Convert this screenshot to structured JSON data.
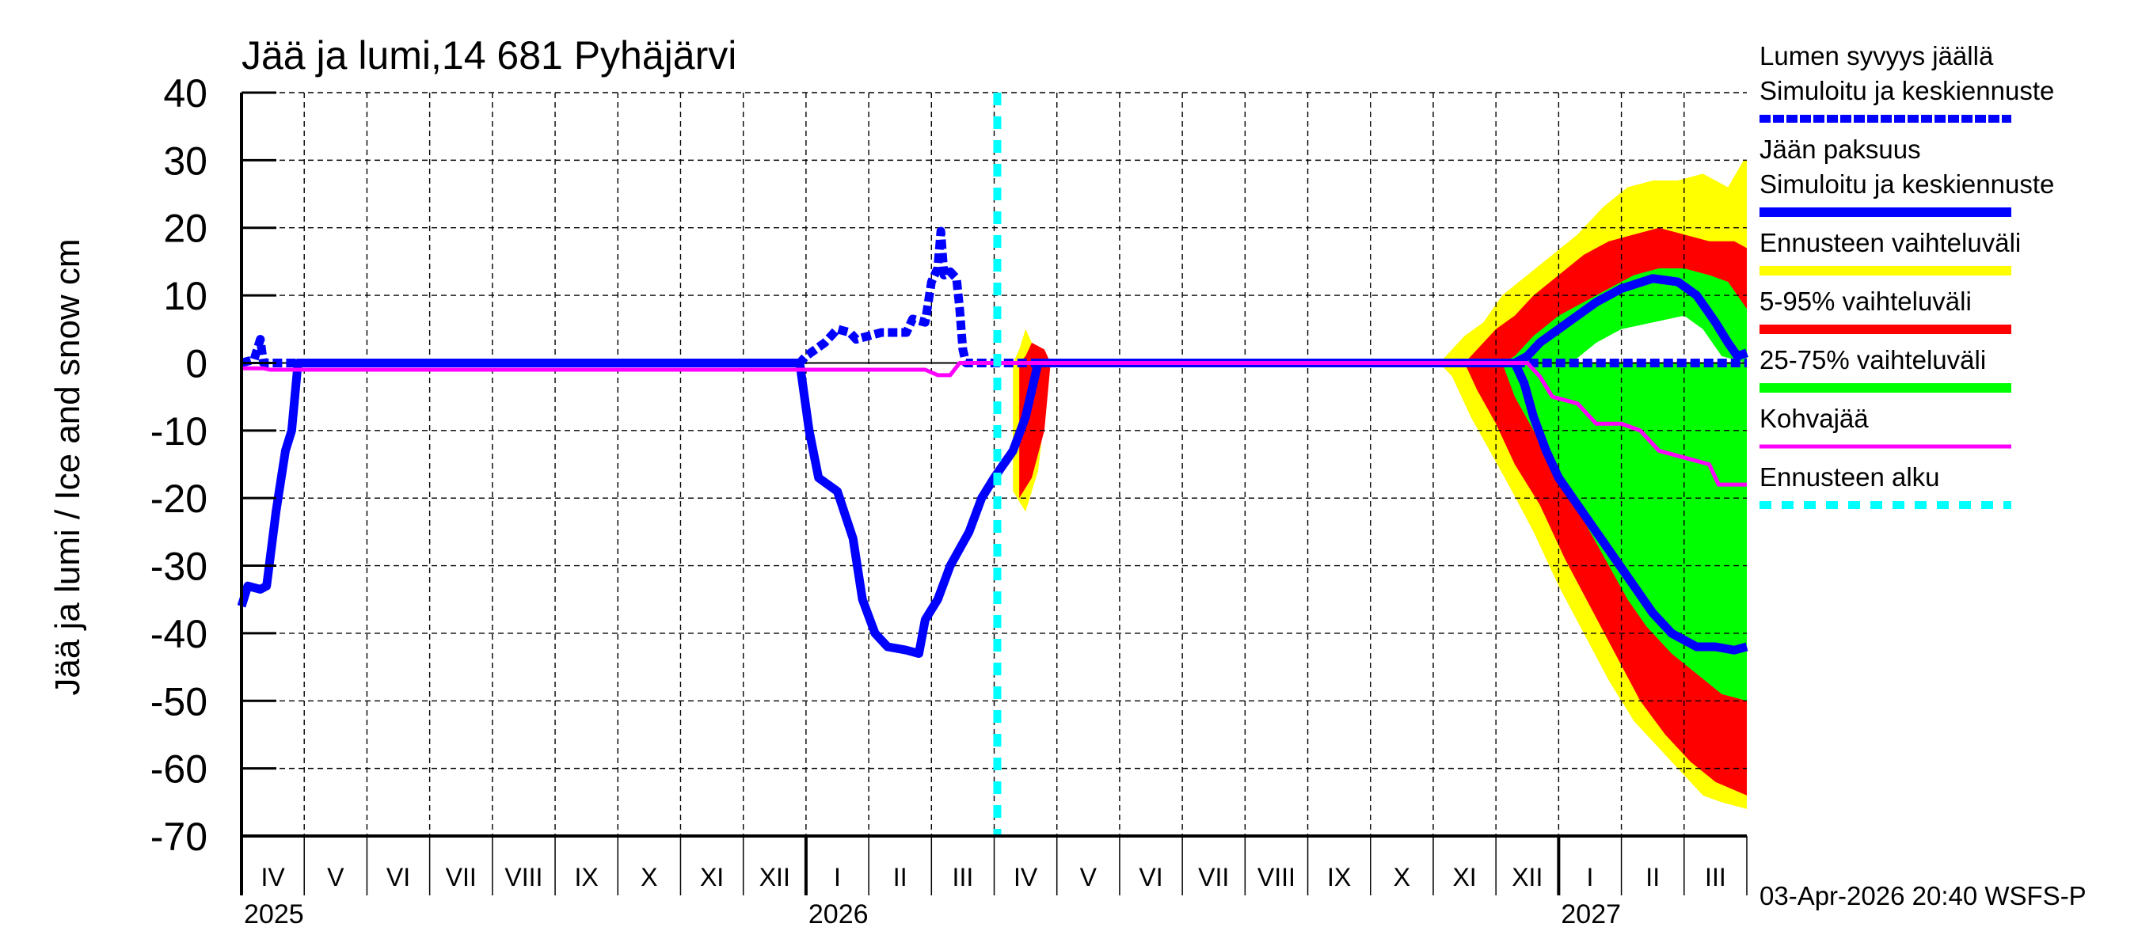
{
  "chart_data": {
    "type": "area",
    "title": "Jää ja lumi,14 681 Pyhäjärvi",
    "xlabel": "",
    "ylabel": "Jää ja lumi / Ice and snow    cm",
    "ylim": [
      -70,
      40
    ],
    "yticks": [
      40,
      30,
      20,
      10,
      0,
      -10,
      -20,
      -30,
      -40,
      -50,
      -60,
      -70
    ],
    "grid": true,
    "legend_position": "right",
    "x_axis": {
      "start": "2025-04",
      "months_shown": 24,
      "month_labels": [
        "IV",
        "V",
        "VI",
        "VII",
        "VIII",
        "IX",
        "X",
        "XI",
        "XII",
        "I",
        "II",
        "III",
        "IV",
        "V",
        "VI",
        "VII",
        "VIII",
        "IX",
        "X",
        "XI",
        "XII",
        "I",
        "II",
        "III"
      ],
      "year_labels": [
        {
          "label": "2025",
          "month_index": 0
        },
        {
          "label": "2026",
          "month_index": 9
        },
        {
          "label": "2027",
          "month_index": 21
        }
      ]
    },
    "forecast_start_month_index": 12.05,
    "timestamp": "03-Apr-2026 20:40 WSFS-P",
    "series": [
      {
        "name": "Lumen syvyys jäällä – Simuloitu ja keskiennuste",
        "kind": "line-dashed",
        "color": "#0000ff",
        "points": [
          [
            0.0,
            0
          ],
          [
            0.2,
            0.5
          ],
          [
            0.3,
            3.5
          ],
          [
            0.35,
            0
          ],
          [
            0.4,
            0
          ],
          [
            8.9,
            0
          ],
          [
            9.0,
            1
          ],
          [
            9.3,
            3
          ],
          [
            9.5,
            5
          ],
          [
            9.7,
            4.5
          ],
          [
            9.8,
            3.5
          ],
          [
            10.0,
            4
          ],
          [
            10.2,
            4.5
          ],
          [
            10.6,
            4.5
          ],
          [
            10.7,
            6.5
          ],
          [
            10.9,
            6
          ],
          [
            11.0,
            12
          ],
          [
            11.1,
            14
          ],
          [
            11.15,
            19.5
          ],
          [
            11.2,
            13
          ],
          [
            11.3,
            13.5
          ],
          [
            11.4,
            12.5
          ],
          [
            11.45,
            8
          ],
          [
            11.5,
            2
          ],
          [
            11.55,
            0
          ],
          [
            24,
            0
          ]
        ]
      },
      {
        "name": "Jään paksuus – Simuloitu ja keskiennuste",
        "kind": "line",
        "color": "#0000ff",
        "points": [
          [
            0.0,
            -36
          ],
          [
            0.1,
            -33
          ],
          [
            0.3,
            -33.5
          ],
          [
            0.4,
            -33
          ],
          [
            0.55,
            -22
          ],
          [
            0.7,
            -13
          ],
          [
            0.8,
            -10
          ],
          [
            0.9,
            0
          ],
          [
            1.0,
            0
          ],
          [
            8.9,
            0
          ],
          [
            9.05,
            -10
          ],
          [
            9.2,
            -17
          ],
          [
            9.35,
            -18
          ],
          [
            9.5,
            -19
          ],
          [
            9.75,
            -26
          ],
          [
            9.9,
            -35
          ],
          [
            10.1,
            -40
          ],
          [
            10.3,
            -42
          ],
          [
            10.6,
            -42.5
          ],
          [
            10.8,
            -43
          ],
          [
            10.9,
            -38
          ],
          [
            11.1,
            -35
          ],
          [
            11.3,
            -30
          ],
          [
            11.6,
            -25
          ],
          [
            11.8,
            -20
          ],
          [
            12.0,
            -17
          ],
          [
            12.3,
            -13
          ],
          [
            12.5,
            -8
          ],
          [
            12.7,
            0
          ],
          [
            12.75,
            0
          ],
          [
            20.3,
            0
          ],
          [
            20.45,
            -3
          ],
          [
            20.6,
            -8
          ],
          [
            20.8,
            -13
          ],
          [
            21.0,
            -17
          ],
          [
            21.3,
            -21
          ],
          [
            21.6,
            -25
          ],
          [
            21.9,
            -29
          ],
          [
            22.2,
            -33
          ],
          [
            22.5,
            -37
          ],
          [
            22.8,
            -40
          ],
          [
            23.2,
            -42
          ],
          [
            23.5,
            -42
          ],
          [
            23.8,
            -42.5
          ],
          [
            24,
            -42
          ]
        ]
      },
      {
        "name": "Jään paksuus keskiennuste (lumi, ennuste)",
        "kind": "line",
        "color": "#0000ff",
        "points": [
          [
            20.3,
            0
          ],
          [
            20.5,
            1
          ],
          [
            20.7,
            3
          ],
          [
            21.0,
            5
          ],
          [
            21.3,
            7
          ],
          [
            21.6,
            9
          ],
          [
            22.0,
            11
          ],
          [
            22.5,
            12.5
          ],
          [
            22.9,
            12
          ],
          [
            23.2,
            10
          ],
          [
            23.5,
            6
          ],
          [
            23.7,
            3
          ],
          [
            23.85,
            1
          ],
          [
            24,
            1.5
          ]
        ]
      },
      {
        "name": "Ennusteen vaihteluväli",
        "kind": "band",
        "color": "#ffff00",
        "upper": [
          [
            12.3,
            0
          ],
          [
            12.4,
            2
          ],
          [
            12.5,
            5
          ],
          [
            12.6,
            3
          ],
          [
            12.8,
            1
          ],
          [
            12.9,
            0
          ],
          [
            19.1,
            0
          ],
          [
            19.3,
            2
          ],
          [
            19.5,
            4
          ],
          [
            19.8,
            6
          ],
          [
            20.1,
            10
          ],
          [
            20.5,
            13
          ],
          [
            20.9,
            16
          ],
          [
            21.3,
            19
          ],
          [
            21.7,
            23
          ],
          [
            22.1,
            26
          ],
          [
            22.5,
            27
          ],
          [
            22.9,
            27
          ],
          [
            23.3,
            28
          ],
          [
            23.7,
            26
          ],
          [
            23.95,
            30
          ],
          [
            24,
            30
          ]
        ],
        "lower": [
          [
            12.3,
            -19
          ],
          [
            12.5,
            -22
          ],
          [
            12.7,
            -16
          ],
          [
            12.8,
            -8
          ],
          [
            12.9,
            0
          ],
          [
            19.1,
            0
          ],
          [
            19.3,
            -2
          ],
          [
            19.6,
            -8
          ],
          [
            19.9,
            -13
          ],
          [
            20.2,
            -18
          ],
          [
            20.6,
            -25
          ],
          [
            21.0,
            -33
          ],
          [
            21.4,
            -40
          ],
          [
            21.8,
            -47
          ],
          [
            22.2,
            -53
          ],
          [
            22.6,
            -57
          ],
          [
            23.0,
            -61
          ],
          [
            23.3,
            -64
          ],
          [
            23.6,
            -65
          ],
          [
            24,
            -66
          ]
        ]
      },
      {
        "name": "5-95% vaihteluväli",
        "kind": "band",
        "color": "#ff0000",
        "upper": [
          [
            12.4,
            0
          ],
          [
            12.5,
            1
          ],
          [
            12.6,
            3
          ],
          [
            12.8,
            2
          ],
          [
            12.9,
            0
          ],
          [
            19.5,
            0
          ],
          [
            19.7,
            2
          ],
          [
            20.0,
            5
          ],
          [
            20.3,
            7
          ],
          [
            20.6,
            10
          ],
          [
            21.0,
            13
          ],
          [
            21.4,
            16
          ],
          [
            21.8,
            18
          ],
          [
            22.2,
            19
          ],
          [
            22.6,
            20
          ],
          [
            23.0,
            19
          ],
          [
            23.4,
            18
          ],
          [
            23.8,
            18
          ],
          [
            24,
            17
          ]
        ],
        "lower": [
          [
            12.4,
            -20
          ],
          [
            12.6,
            -17
          ],
          [
            12.8,
            -10
          ],
          [
            12.9,
            0
          ],
          [
            19.5,
            0
          ],
          [
            19.7,
            -4
          ],
          [
            20.0,
            -9
          ],
          [
            20.3,
            -15
          ],
          [
            20.7,
            -21
          ],
          [
            21.1,
            -29
          ],
          [
            21.5,
            -36
          ],
          [
            21.9,
            -43
          ],
          [
            22.3,
            -50
          ],
          [
            22.7,
            -55
          ],
          [
            23.1,
            -59
          ],
          [
            23.5,
            -62
          ],
          [
            24,
            -64
          ]
        ]
      },
      {
        "name": "25-75% vaihteluväli",
        "kind": "band",
        "color": "#00ff00",
        "upper": [
          [
            20.1,
            0
          ],
          [
            20.3,
            1
          ],
          [
            20.6,
            4
          ],
          [
            21.0,
            7
          ],
          [
            21.4,
            9
          ],
          [
            21.8,
            11
          ],
          [
            22.2,
            13
          ],
          [
            22.6,
            14
          ],
          [
            23.0,
            14
          ],
          [
            23.4,
            13
          ],
          [
            23.7,
            12
          ],
          [
            24,
            8
          ]
        ],
        "lower": [
          [
            20.1,
            0
          ],
          [
            20.3,
            -5
          ],
          [
            20.6,
            -10
          ],
          [
            20.9,
            -15
          ],
          [
            21.2,
            -20
          ],
          [
            21.5,
            -25
          ],
          [
            21.8,
            -30
          ],
          [
            22.1,
            -35
          ],
          [
            22.4,
            -39
          ],
          [
            22.8,
            -43
          ],
          [
            23.2,
            -46
          ],
          [
            23.6,
            -49
          ],
          [
            24,
            -50
          ]
        ]
      },
      {
        "name": "5-95% lumi alaraja (ennuste)",
        "kind": "band-inner-white",
        "color": "#ffffff",
        "upper": [
          [
            21.2,
            0
          ],
          [
            21.6,
            3
          ],
          [
            22.0,
            5
          ],
          [
            22.5,
            6
          ],
          [
            23.0,
            7
          ],
          [
            23.3,
            5
          ],
          [
            23.6,
            1
          ],
          [
            24,
            0
          ]
        ],
        "lower": [
          [
            21.2,
            0
          ],
          [
            24,
            0
          ]
        ]
      },
      {
        "name": "Kohvajää",
        "kind": "line",
        "color": "#ff00ff",
        "points": [
          [
            0,
            -0.8
          ],
          [
            0.35,
            -0.8
          ],
          [
            0.45,
            -1
          ],
          [
            8.9,
            -1
          ],
          [
            10.9,
            -1
          ],
          [
            11.1,
            -1.8
          ],
          [
            11.3,
            -1.8
          ],
          [
            11.45,
            0
          ],
          [
            20.5,
            0
          ],
          [
            20.7,
            -2
          ],
          [
            20.9,
            -5
          ],
          [
            21.3,
            -6
          ],
          [
            21.6,
            -9
          ],
          [
            22.0,
            -9
          ],
          [
            22.3,
            -10
          ],
          [
            22.6,
            -13
          ],
          [
            23.0,
            -14
          ],
          [
            23.4,
            -15
          ],
          [
            23.55,
            -18
          ],
          [
            24,
            -18
          ]
        ]
      },
      {
        "name": "Ennusteen alku",
        "kind": "vline-dashed",
        "color": "#00ffff",
        "x": 12.05
      }
    ]
  },
  "legend": {
    "items": [
      {
        "label1": "Lumen syvyys jäällä",
        "label2": "Simuloitu ja keskiennuste",
        "color": "#0000ff",
        "style": "dashed"
      },
      {
        "label1": "Jään paksuus",
        "label2": "Simuloitu ja keskiennuste",
        "color": "#0000ff",
        "style": "solid"
      },
      {
        "label1": "Ennusteen vaihteluväli",
        "color": "#ffff00",
        "style": "solid"
      },
      {
        "label1": "5-95% vaihteluväli",
        "color": "#ff0000",
        "style": "solid"
      },
      {
        "label1": "25-75% vaihteluväli",
        "color": "#00ff00",
        "style": "solid"
      },
      {
        "label1": "Kohvajää",
        "color": "#ff00ff",
        "style": "thin"
      },
      {
        "label1": "Ennusteen alku",
        "color": "#00ffff",
        "style": "dotted"
      }
    ]
  }
}
